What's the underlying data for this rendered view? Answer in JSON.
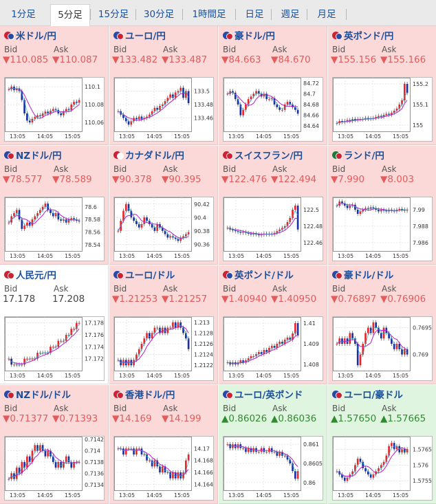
{
  "tabs": [
    {
      "label": "1分足",
      "active": false
    },
    {
      "label": "5分足",
      "active": true
    },
    {
      "label": "15分足",
      "active": false
    },
    {
      "label": "30分足",
      "active": false
    },
    {
      "label": "1時間足",
      "active": false
    },
    {
      "label": "日足",
      "active": false
    },
    {
      "label": "週足",
      "active": false
    },
    {
      "label": "月足",
      "active": false
    }
  ],
  "bid_label": "Bid",
  "ask_label": "Ask",
  "colors": {
    "down_bg": "#fcd9d9",
    "up_bg": "#dff5df",
    "candle_up": "#e8262a",
    "candle_down": "#1a2fa0",
    "ma": "#b71ecb",
    "ma2": "#2aa9c9"
  },
  "pairs": [
    {
      "name": "米ドル/円",
      "flag": [
        "#cc2233",
        "#2b4aa8"
      ],
      "trend": "down",
      "bid": "▼110.085",
      "ask": "▼110.087",
      "chart_data": {
        "type": "candlestick",
        "x_ticks": [
          "13:05",
          "14:05",
          "15:05"
        ],
        "y_ticks": [
          "110.1",
          "110.08",
          "110.06"
        ],
        "ylim": [
          110.05,
          110.11
        ],
        "series": [
          110.097,
          110.1,
          110.096,
          110.098,
          110.095,
          110.085,
          110.07,
          110.062,
          110.06,
          110.064,
          110.066,
          110.068,
          110.067,
          110.07,
          110.072,
          110.07,
          110.073,
          110.075,
          110.074,
          110.07,
          110.068,
          110.072,
          110.075,
          110.074,
          110.08,
          110.083,
          110.082,
          110.085
        ]
      }
    },
    {
      "name": "ユーロ/円",
      "flag": [
        "#2b4aa8",
        "#cc2233"
      ],
      "trend": "down",
      "bid": "▼133.482",
      "ask": "▼133.487",
      "chart_data": {
        "type": "candlestick",
        "x_ticks": [
          "13:05",
          "14:05",
          "15:05"
        ],
        "y_ticks": [
          "133.5",
          "133.48",
          "133.46"
        ],
        "ylim": [
          133.44,
          133.52
        ],
        "series": [
          133.47,
          133.465,
          133.46,
          133.455,
          133.45,
          133.455,
          133.46,
          133.458,
          133.462,
          133.458,
          133.46,
          133.462,
          133.465,
          133.47,
          133.475,
          133.472,
          133.478,
          133.48,
          133.485,
          133.49,
          133.495,
          133.49,
          133.498,
          133.5,
          133.505,
          133.49,
          133.5,
          133.482
        ]
      }
    },
    {
      "name": "豪ドル/円",
      "flag": [
        "#2b4aa8",
        "#cc2233"
      ],
      "trend": "down",
      "bid": "▼84.663",
      "ask": "▼84.670",
      "chart_data": {
        "type": "candlestick",
        "x_ticks": [
          "13:05",
          "14:05",
          "15:05"
        ],
        "y_ticks": [
          "84.72",
          "84.7",
          "84.68",
          "84.66",
          "84.64"
        ],
        "ylim": [
          84.63,
          84.73
        ],
        "series": [
          84.7,
          84.705,
          84.702,
          84.69,
          84.68,
          84.66,
          84.67,
          84.68,
          84.69,
          84.695,
          84.7,
          84.705,
          84.7,
          84.695,
          84.7,
          84.69,
          84.69,
          84.692,
          84.68,
          84.675,
          84.67,
          84.67,
          84.68,
          84.685,
          84.68,
          84.675,
          84.67,
          84.663
        ]
      }
    },
    {
      "name": "英ポンド/円",
      "flag": [
        "#cc2233",
        "#2b4aa8"
      ],
      "trend": "down",
      "bid": "▼155.156",
      "ask": "▼155.166",
      "chart_data": {
        "type": "candlestick",
        "x_ticks": [
          "13:05",
          "14:05",
          "15:05"
        ],
        "y_ticks": [
          "155.2",
          "155.1",
          "155"
        ],
        "ylim": [
          154.97,
          155.23
        ],
        "series": [
          155.01,
          155.02,
          155.015,
          155.02,
          155.025,
          155.02,
          155.03,
          155.025,
          155.03,
          155.028,
          155.03,
          155.035,
          155.03,
          155.032,
          155.035,
          155.04,
          155.045,
          155.04,
          155.05,
          155.055,
          155.05,
          155.06,
          155.07,
          155.08,
          155.1,
          155.12,
          155.2,
          155.156
        ]
      }
    },
    {
      "name": "NZドル/円",
      "flag": [
        "#2b4aa8",
        "#cc2233"
      ],
      "trend": "down",
      "bid": "▼78.577",
      "ask": "▼78.589",
      "chart_data": {
        "type": "candlestick",
        "x_ticks": [
          "13:05",
          "14:05",
          "15:05"
        ],
        "y_ticks": [
          "78.6",
          "78.58",
          "78.56",
          "78.54"
        ],
        "ylim": [
          78.53,
          78.615
        ],
        "series": [
          78.575,
          78.585,
          78.59,
          78.595,
          78.58,
          78.565,
          78.57,
          78.575,
          78.57,
          78.58,
          78.585,
          78.59,
          78.595,
          78.6,
          78.605,
          78.595,
          78.59,
          78.585,
          78.59,
          78.58,
          78.578,
          78.58,
          78.575,
          78.58,
          78.582,
          78.58,
          78.578,
          78.577
        ]
      }
    },
    {
      "name": "カナダドル/円",
      "flag": [
        "#cc2233",
        "#ffffff"
      ],
      "trend": "down",
      "bid": "▼90.378",
      "ask": "▼90.395",
      "chart_data": {
        "type": "candlestick",
        "x_ticks": [
          "13:05",
          "14:05",
          "15:05"
        ],
        "y_ticks": [
          "90.42",
          "90.4",
          "90.38",
          "90.36"
        ],
        "ylim": [
          90.35,
          90.43
        ],
        "series": [
          90.38,
          90.395,
          90.41,
          90.42,
          90.41,
          90.4,
          90.395,
          90.39,
          90.385,
          90.39,
          90.4,
          90.395,
          90.39,
          90.385,
          90.38,
          90.39,
          90.385,
          90.38,
          90.375,
          90.37,
          90.372,
          90.37,
          90.368,
          90.365,
          90.37,
          90.372,
          90.375,
          90.378
        ]
      }
    },
    {
      "name": "スイスフラン/円",
      "flag": [
        "#cc2233",
        "#cc2233"
      ],
      "trend": "down",
      "bid": "▼122.476",
      "ask": "▼122.494",
      "chart_data": {
        "type": "candlestick",
        "x_ticks": [
          "13:05",
          "14:05",
          "15:05"
        ],
        "y_ticks": [
          "122.5",
          "122.48",
          "122.46"
        ],
        "ylim": [
          122.45,
          122.515
        ],
        "series": [
          122.478,
          122.476,
          122.475,
          122.474,
          122.473,
          122.472,
          122.473,
          122.472,
          122.471,
          122.47,
          122.471,
          122.47,
          122.469,
          122.47,
          122.471,
          122.47,
          122.471,
          122.47,
          122.472,
          122.474,
          122.476,
          122.478,
          122.48,
          122.485,
          122.49,
          122.5,
          122.505,
          122.476
        ]
      }
    },
    {
      "name": "ランド/円",
      "flag": [
        "#1d7a3a",
        "#cc2233"
      ],
      "trend": "down",
      "bid": "▼7.990",
      "ask": "▼8.003",
      "chart_data": {
        "type": "candlestick",
        "x_ticks": [
          "13:05",
          "14:05",
          "15:05"
        ],
        "y_ticks": [
          "7.99",
          "7.988",
          "7.986"
        ],
        "ylim": [
          7.985,
          7.9915
        ],
        "series": [
          7.9905,
          7.991,
          7.9908,
          7.9905,
          7.9902,
          7.9905,
          7.9906,
          7.99,
          7.9895,
          7.9898,
          7.99,
          7.9902,
          7.9901,
          7.9903,
          7.9902,
          7.99,
          7.9898,
          7.99,
          7.9899,
          7.9898,
          7.99,
          7.9899,
          7.9898,
          7.99,
          7.9901,
          7.99,
          7.9899,
          7.99
        ]
      }
    },
    {
      "name": "人民元/円",
      "flag": [
        "#cc2233",
        "#cc2233"
      ],
      "trend": "none",
      "bid": "17.178",
      "ask": "17.208",
      "chart_data": {
        "type": "candlestick",
        "x_ticks": [
          "13:05",
          "14:05",
          "15:05"
        ],
        "y_ticks": [
          "17.178",
          "17.176",
          "17.174",
          "17.172"
        ],
        "ylim": [
          17.17,
          17.179
        ],
        "series": [
          17.172,
          17.171,
          17.171,
          17.171,
          17.171,
          17.171,
          17.172,
          17.172,
          17.172,
          17.172,
          17.172,
          17.173,
          17.173,
          17.173,
          17.173,
          17.173,
          17.174,
          17.174,
          17.174,
          17.175,
          17.175,
          17.175,
          17.176,
          17.176,
          17.177,
          17.177,
          17.178,
          17.178
        ]
      }
    },
    {
      "name": "ユーロ/ドル",
      "flag": [
        "#2b4aa8",
        "#cc2233"
      ],
      "trend": "down",
      "bid": "▼1.21253",
      "ask": "▼1.21257",
      "chart_data": {
        "type": "candlestick",
        "x_ticks": [
          "13:05",
          "14:05",
          "15:05"
        ],
        "y_ticks": [
          "1.213",
          "1.2128",
          "1.2126",
          "1.2124",
          "1.2122"
        ],
        "ylim": [
          1.2121,
          1.2131
        ],
        "series": [
          1.2123,
          1.2122,
          1.2123,
          1.2122,
          1.2123,
          1.2122,
          1.2123,
          1.2124,
          1.2125,
          1.2126,
          1.2127,
          1.2128,
          1.2127,
          1.2128,
          1.2129,
          1.2129,
          1.2128,
          1.2129,
          1.2128,
          1.2129,
          1.2129,
          1.213,
          1.2129,
          1.213,
          1.2129,
          1.2128,
          1.2127,
          1.2125
        ]
      }
    },
    {
      "name": "英ポンド/ドル",
      "flag": [
        "#cc2233",
        "#2b4aa8"
      ],
      "trend": "down",
      "bid": "▼1.40940",
      "ask": "▼1.40950",
      "chart_data": {
        "type": "candlestick",
        "x_ticks": [
          "13:05",
          "14:05",
          "15:05"
        ],
        "y_ticks": [
          "1.41",
          "1.409",
          "1.408"
        ],
        "ylim": [
          1.4077,
          1.4103
        ],
        "series": [
          1.4081,
          1.408,
          1.4081,
          1.408,
          1.4081,
          1.4082,
          1.4081,
          1.4082,
          1.4083,
          1.4084,
          1.4084,
          1.4085,
          1.4086,
          1.4085,
          1.4087,
          1.4086,
          1.4088,
          1.4089,
          1.4088,
          1.409,
          1.4091,
          1.409,
          1.4092,
          1.4093,
          1.4092,
          1.4095,
          1.41,
          1.4094
        ]
      }
    },
    {
      "name": "豪ドル/ドル",
      "flag": [
        "#2b4aa8",
        "#cc2233"
      ],
      "trend": "down",
      "bid": "▼0.76897",
      "ask": "▼0.76906",
      "chart_data": {
        "type": "candlestick",
        "x_ticks": [
          "13:05",
          "14:05",
          "15:05"
        ],
        "y_ticks": [
          "0.7695",
          "0.769"
        ],
        "ylim": [
          0.7687,
          0.7697
        ],
        "series": [
          0.7692,
          0.7693,
          0.7692,
          0.7693,
          0.7692,
          0.7694,
          0.7693,
          0.7692,
          0.7688,
          0.769,
          0.7692,
          0.7694,
          0.7695,
          0.7694,
          0.7696,
          0.7695,
          0.7694,
          0.7693,
          0.7695,
          0.7694,
          0.7693,
          0.7692,
          0.7691,
          0.7692,
          0.7691,
          0.769,
          0.7691,
          0.769
        ]
      }
    },
    {
      "name": "NZドル/ドル",
      "flag": [
        "#2b4aa8",
        "#cc2233"
      ],
      "trend": "down",
      "bid": "▼0.71377",
      "ask": "▼0.71393",
      "chart_data": {
        "type": "candlestick",
        "x_ticks": [
          "13:05",
          "14:05",
          "15:05"
        ],
        "y_ticks": [
          "0.7142",
          "0.714",
          "0.7138",
          "0.7136",
          "0.7134"
        ],
        "ylim": [
          0.7133,
          0.71425
        ],
        "series": [
          0.7135,
          0.7136,
          0.7135,
          0.7137,
          0.7136,
          0.7138,
          0.7137,
          0.7139,
          0.7138,
          0.714,
          0.7141,
          0.714,
          0.7141,
          0.714,
          0.7139,
          0.714,
          0.7139,
          0.7138,
          0.7137,
          0.7138,
          0.7137,
          0.7138,
          0.7139,
          0.7138,
          0.7137,
          0.7138,
          0.7138,
          0.7138
        ]
      }
    },
    {
      "name": "香港ドル/円",
      "flag": [
        "#cc2233",
        "#cc2233"
      ],
      "trend": "down",
      "bid": "▼14.169",
      "ask": "▼14.199",
      "chart_data": {
        "type": "candlestick",
        "x_ticks": [
          "13:05",
          "14:05",
          "15:05"
        ],
        "y_ticks": [
          "14.17",
          "14.168",
          "14.166",
          "14.164"
        ],
        "ylim": [
          14.163,
          14.172
        ],
        "series": [
          14.17,
          14.17,
          14.169,
          14.17,
          14.17,
          14.17,
          14.169,
          14.17,
          14.17,
          14.169,
          14.169,
          14.168,
          14.168,
          14.167,
          14.168,
          14.167,
          14.166,
          14.167,
          14.166,
          14.166,
          14.165,
          14.166,
          14.165,
          14.166,
          14.165,
          14.166,
          14.168,
          14.169
        ]
      }
    },
    {
      "name": "ユーロ/英ポンド",
      "flag": [
        "#2b4aa8",
        "#cc2233"
      ],
      "trend": "up",
      "bid": "▲0.86026",
      "ask": "▲0.86036",
      "chart_data": {
        "type": "candlestick",
        "x_ticks": [
          "13:05",
          "14:05",
          "15:05"
        ],
        "y_ticks": [
          "0.861",
          "0.8605",
          "0.86"
        ],
        "ylim": [
          0.8598,
          0.8612
        ],
        "series": [
          0.861,
          0.8609,
          0.861,
          0.8609,
          0.861,
          0.8609,
          0.8609,
          0.8608,
          0.8609,
          0.8608,
          0.8609,
          0.8608,
          0.8608,
          0.8609,
          0.8608,
          0.8608,
          0.8609,
          0.8608,
          0.8608,
          0.8607,
          0.8608,
          0.8607,
          0.8607,
          0.8606,
          0.8605,
          0.8603,
          0.8601,
          0.8603
        ]
      }
    },
    {
      "name": "ユーロ/豪ドル",
      "flag": [
        "#2b4aa8",
        "#cc2233"
      ],
      "trend": "up",
      "bid": "▲1.57650",
      "ask": "▲1.57665",
      "chart_data": {
        "type": "candlestick",
        "x_ticks": [
          "13:05",
          "14:05",
          "15:05"
        ],
        "y_ticks": [
          "1.5765",
          "1.576",
          "1.5755"
        ],
        "ylim": [
          1.5752,
          1.5769
        ],
        "series": [
          1.5758,
          1.5757,
          1.5756,
          1.5755,
          1.5756,
          1.5757,
          1.5758,
          1.576,
          1.5762,
          1.5761,
          1.5759,
          1.5758,
          1.5757,
          1.5756,
          1.5757,
          1.5758,
          1.5759,
          1.576,
          1.5761,
          1.5763,
          1.5766,
          1.5767,
          1.5765,
          1.5766,
          1.5764,
          1.5765,
          1.5764,
          1.5765
        ]
      }
    }
  ]
}
